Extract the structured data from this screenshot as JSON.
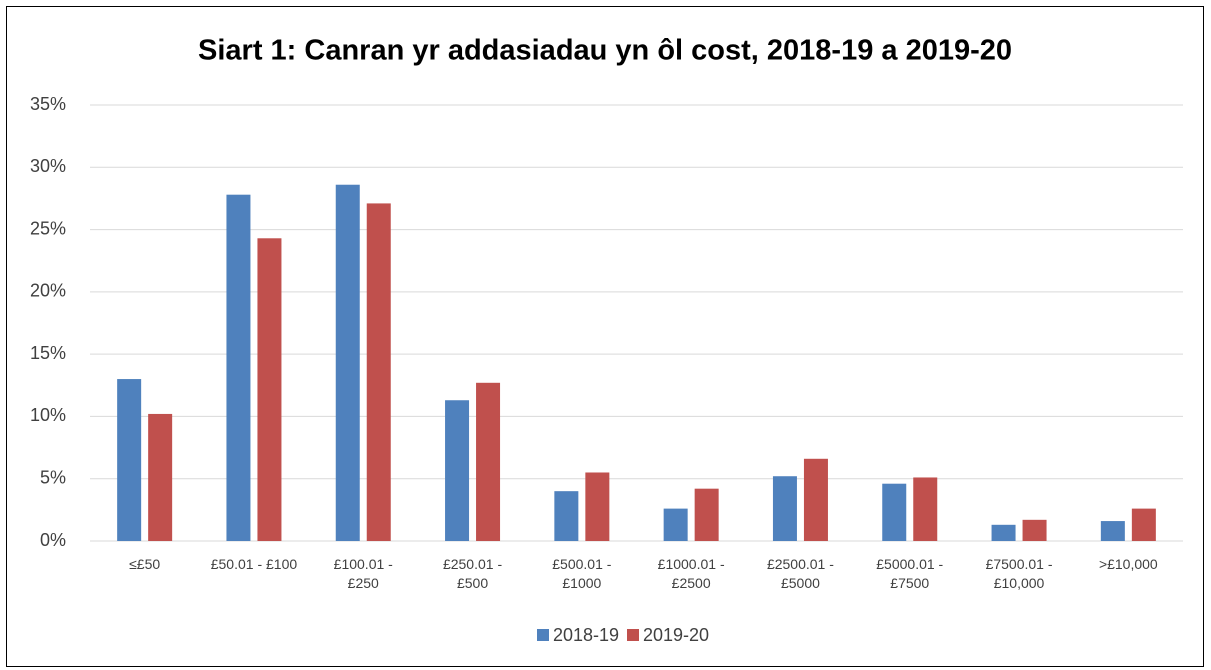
{
  "chart_data": {
    "type": "bar",
    "title": "Siart 1: Canran yr addasiadau yn ôl cost, 2018-19 a 2019-20",
    "categories": [
      "≤£50",
      "£50.01 - £100",
      "£100.01 -\n£250",
      "£250.01 -\n£500",
      "£500.01 -\n£1000",
      "£1000.01 -\n£2500",
      "£2500.01 -\n£5000",
      "£5000.01 -\n£7500",
      "£7500.01 -\n£10,000",
      ">£10,000"
    ],
    "series": [
      {
        "name": "2018-19",
        "color": "#4f81bd",
        "values": [
          13.0,
          27.8,
          28.6,
          11.3,
          4.0,
          2.6,
          5.2,
          4.6,
          1.3,
          1.6
        ]
      },
      {
        "name": "2019-20",
        "color": "#c0504d",
        "values": [
          10.2,
          24.3,
          27.1,
          12.7,
          5.5,
          4.2,
          6.6,
          5.1,
          1.7,
          2.6
        ]
      }
    ],
    "ylim": [
      0,
      35
    ],
    "yticks": [
      {
        "value": 0,
        "label": "0%"
      },
      {
        "value": 5,
        "label": "5%"
      },
      {
        "value": 10,
        "label": "10%"
      },
      {
        "value": 15,
        "label": "15%"
      },
      {
        "value": 20,
        "label": "20%"
      },
      {
        "value": 25,
        "label": "25%"
      },
      {
        "value": 30,
        "label": "30%"
      },
      {
        "value": 35,
        "label": "35%"
      }
    ],
    "grid": true,
    "legend": "bottom"
  }
}
